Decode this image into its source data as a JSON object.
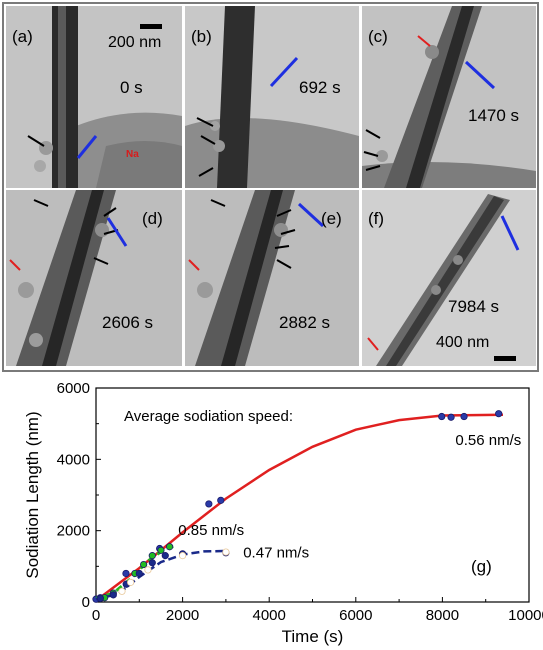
{
  "panels": [
    {
      "label": "(a)",
      "time": "0 s",
      "scale": "200 nm",
      "na": "Na"
    },
    {
      "label": "(b)",
      "time": "692 s"
    },
    {
      "label": "(c)",
      "time": "1470 s"
    },
    {
      "label": "(d)",
      "time": "2606 s"
    },
    {
      "label": "(e)",
      "time": "2882 s"
    },
    {
      "label": "(f)",
      "time": "7984 s",
      "scale": "400 nm"
    }
  ],
  "chart_data": {
    "type": "scatter",
    "panel_label": "(g)",
    "title": "",
    "xlabel": "Time (s)",
    "ylabel": "Sodiation Length (nm)",
    "xlim": [
      0,
      10000
    ],
    "ylim": [
      0,
      6000
    ],
    "xticks": [
      "0",
      "2000",
      "4000",
      "6000",
      "8000",
      "10000"
    ],
    "yticks": [
      "0",
      "2000",
      "4000",
      "6000"
    ],
    "annotation": "Average sodiation speed:",
    "series": [
      {
        "color": "#e02020",
        "fit_label": "0.56 nm/s",
        "points": [
          [
            0,
            80
          ],
          [
            100,
            120
          ],
          [
            692,
            800
          ],
          [
            1470,
            1500
          ],
          [
            2606,
            2750
          ],
          [
            2882,
            2850
          ],
          [
            7984,
            5200
          ],
          [
            8200,
            5180
          ],
          [
            8500,
            5200
          ],
          [
            9300,
            5280
          ]
        ],
        "fit": [
          [
            0,
            40
          ],
          [
            1000,
            950
          ],
          [
            2000,
            1950
          ],
          [
            3000,
            2900
          ],
          [
            4000,
            3700
          ],
          [
            5000,
            4350
          ],
          [
            6000,
            4830
          ],
          [
            7000,
            5100
          ],
          [
            8000,
            5230
          ],
          [
            9400,
            5250
          ]
        ]
      },
      {
        "color": "#22bb22",
        "fit_label": "0.85 nm/s",
        "points": [
          [
            200,
            120
          ],
          [
            400,
            250
          ],
          [
            700,
            500
          ],
          [
            900,
            800
          ],
          [
            1100,
            1050
          ],
          [
            1300,
            1300
          ],
          [
            1500,
            1450
          ],
          [
            1700,
            1550
          ]
        ],
        "fit": [
          [
            0,
            100
          ],
          [
            400,
            250
          ],
          [
            800,
            650
          ],
          [
            1200,
            1150
          ],
          [
            1600,
            1500
          ],
          [
            1800,
            1560
          ]
        ]
      },
      {
        "color": "#1a2a8a",
        "fit_label": "0.47 nm/s",
        "points": [
          [
            100,
            100
          ],
          [
            400,
            200
          ],
          [
            700,
            500
          ],
          [
            1000,
            800
          ],
          [
            1300,
            1100
          ],
          [
            1600,
            1300
          ],
          [
            2000,
            1350
          ],
          [
            3000,
            1380
          ]
        ],
        "fit": [
          [
            0,
            80
          ],
          [
            500,
            220
          ],
          [
            1000,
            700
          ],
          [
            1500,
            1120
          ],
          [
            2000,
            1330
          ],
          [
            2500,
            1420
          ],
          [
            3000,
            1430
          ]
        ]
      },
      {
        "color": "#e8c89a",
        "fit_label": "",
        "points": [
          [
            600,
            300
          ],
          [
            800,
            550
          ],
          [
            1200,
            900
          ],
          [
            2000,
            1300
          ],
          [
            3000,
            1400
          ]
        ],
        "fit": []
      }
    ]
  }
}
